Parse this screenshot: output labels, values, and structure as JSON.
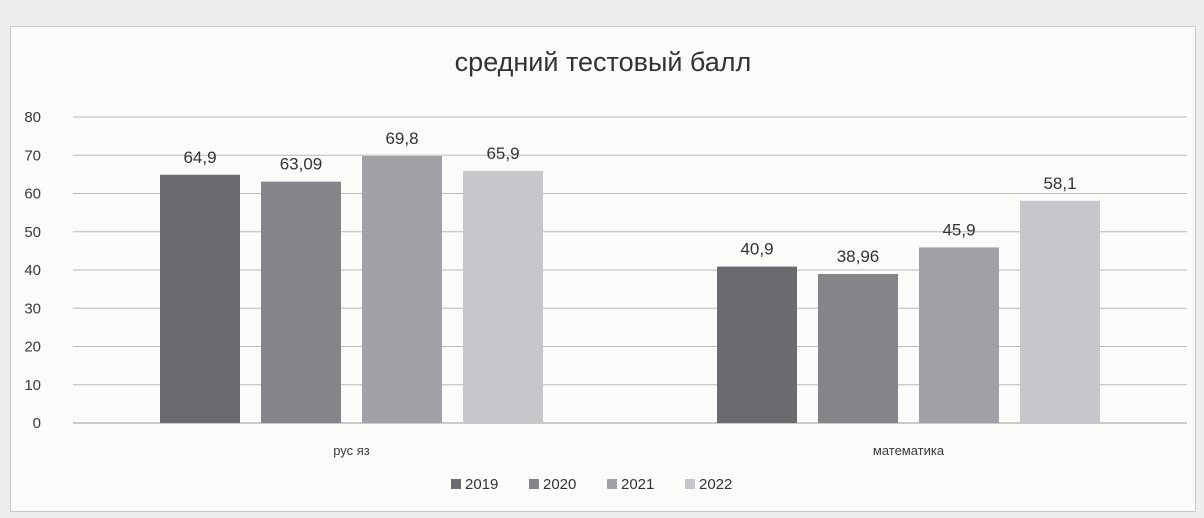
{
  "chart_data": {
    "type": "bar",
    "title": "средний тестовый балл",
    "xlabel": "",
    "ylabel": "",
    "categories": [
      "рус яз",
      "математика"
    ],
    "series": [
      {
        "name": "2019",
        "values": [
          64.9,
          40.9
        ],
        "labels": [
          "64,9",
          "40,9"
        ],
        "color": "#6b6a6f"
      },
      {
        "name": "2020",
        "values": [
          63.09,
          38.96
        ],
        "labels": [
          "63,09",
          "38,96"
        ],
        "color": "#858489"
      },
      {
        "name": "2021",
        "values": [
          69.8,
          45.9
        ],
        "labels": [
          "69,8",
          "45,9"
        ],
        "color": "#a1a0a5"
      },
      {
        "name": "2022",
        "values": [
          65.9,
          58.1
        ],
        "labels": [
          "65,9",
          "58,1"
        ],
        "color": "#c7c6ca"
      }
    ],
    "ylim": [
      0,
      80
    ],
    "yticks": [
      0,
      10,
      20,
      30,
      40,
      50,
      60,
      70,
      80
    ],
    "grid": true,
    "legend": "bottom"
  }
}
